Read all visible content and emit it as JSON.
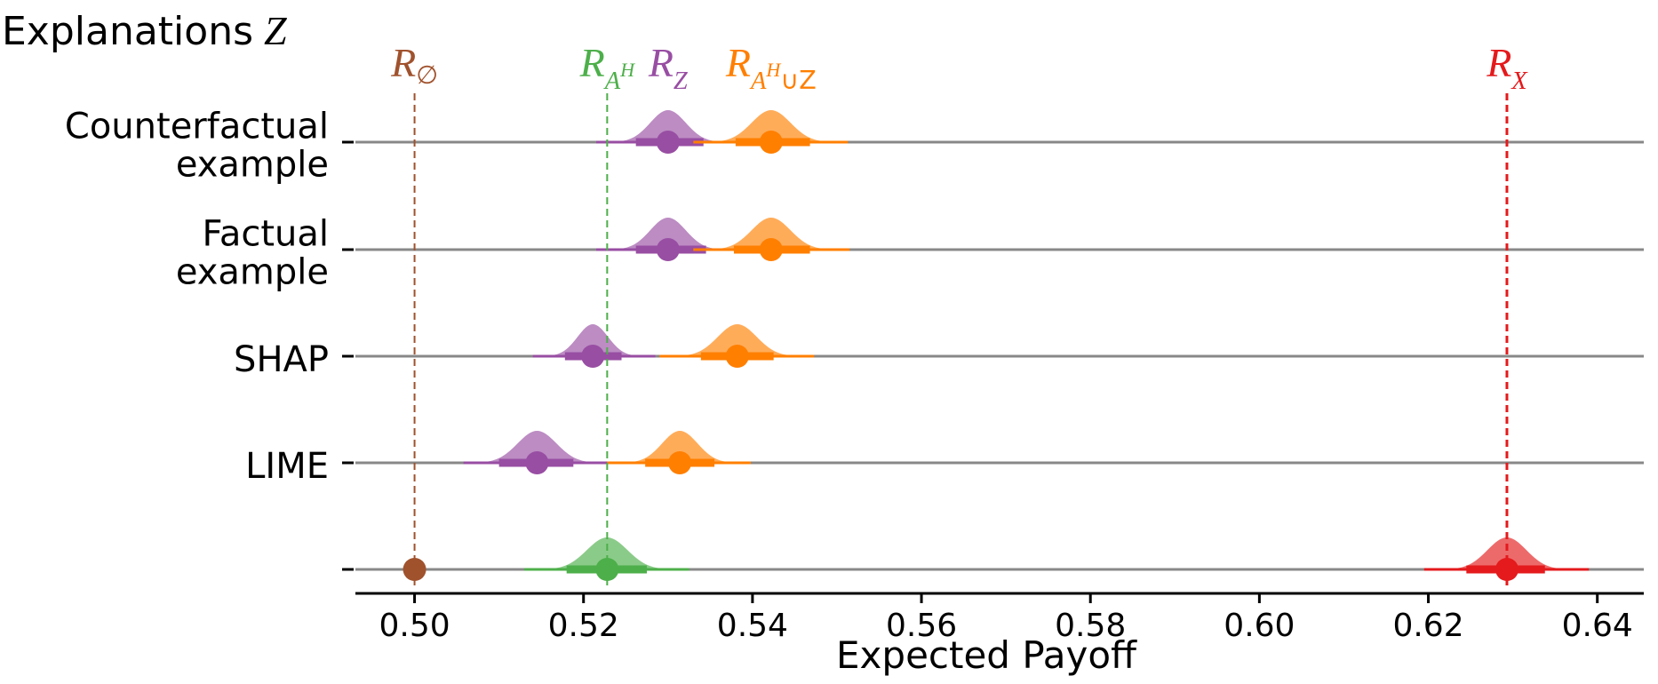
{
  "chart_data": {
    "type": "interval-density",
    "title_prefix": "Explanations",
    "title_var": "Z",
    "xlabel": "Expected Payoff",
    "xlim": [
      0.493,
      0.6455
    ],
    "xticks": [
      0.5,
      0.52,
      0.54,
      0.56,
      0.58,
      0.6,
      0.62,
      0.64
    ],
    "tick_labels": [
      "0.50",
      "0.52",
      "0.54",
      "0.56",
      "0.58",
      "0.60",
      "0.62",
      "0.64"
    ],
    "colors": {
      "none": "#A0522D",
      "AH": "#4DAF4A",
      "Z": "#984EA3",
      "AHZ": "#FF7F00",
      "X": "#E41A1C",
      "line": "#888888"
    },
    "reference_lines": [
      {
        "key": "none",
        "base": "R",
        "sub": "∅",
        "x": 0.5,
        "color": "#A0522D"
      },
      {
        "key": "AH",
        "base": "R",
        "sub": "A",
        "supsub": "H",
        "x": 0.5228,
        "color": "#4DAF4A"
      },
      {
        "key": "X",
        "base": "R",
        "sub": "X",
        "x": 0.6293,
        "color": "#E41A1C"
      }
    ],
    "header_labels": [
      {
        "key": "Z",
        "base": "R",
        "sub": "Z",
        "x": 0.53,
        "color": "#984EA3"
      },
      {
        "key": "AHZ",
        "base": "R",
        "sub": "A",
        "supsub": "H",
        "subtail": "∪Z",
        "x": 0.5422,
        "color": "#FF7F00"
      }
    ],
    "rows": [
      {
        "label": [
          "Counterfactual",
          "example"
        ],
        "series": [
          {
            "key": "Z",
            "mean": 0.53,
            "sd": 0.0021,
            "ci66": [
              0.5262,
              0.5342
            ],
            "ci95": [
              0.5215,
              0.5387
            ]
          },
          {
            "key": "AHZ",
            "mean": 0.5422,
            "sd": 0.0023,
            "ci66": [
              0.538,
              0.5468
            ],
            "ci95": [
              0.533,
              0.5513
            ]
          }
        ]
      },
      {
        "label": [
          "Factual",
          "example"
        ],
        "series": [
          {
            "key": "Z",
            "mean": 0.53,
            "sd": 0.0021,
            "ci66": [
              0.5262,
              0.5345
            ],
            "ci95": [
              0.5215,
              0.5387
            ]
          },
          {
            "key": "AHZ",
            "mean": 0.5422,
            "sd": 0.0023,
            "ci66": [
              0.5378,
              0.5468
            ],
            "ci95": [
              0.533,
              0.5515
            ]
          }
        ]
      },
      {
        "label": [
          "SHAP"
        ],
        "series": [
          {
            "key": "Z",
            "mean": 0.5211,
            "sd": 0.0018,
            "ci66": [
              0.5178,
              0.5245
            ],
            "ci95": [
              0.514,
              0.5285
            ]
          },
          {
            "key": "AHZ",
            "mean": 0.5382,
            "sd": 0.0023,
            "ci66": [
              0.5339,
              0.5425
            ],
            "ci95": [
              0.529,
              0.5473
            ]
          }
        ]
      },
      {
        "label": [
          "LIME"
        ],
        "series": [
          {
            "key": "Z",
            "mean": 0.5145,
            "sd": 0.0023,
            "ci66": [
              0.51,
              0.5188
            ],
            "ci95": [
              0.5058,
              0.524
            ]
          },
          {
            "key": "AHZ",
            "mean": 0.5314,
            "sd": 0.0021,
            "ci66": [
              0.5273,
              0.5355
            ],
            "ci95": [
              0.5228,
              0.5398
            ]
          }
        ]
      },
      {
        "label": [
          ""
        ],
        "series": [
          {
            "key": "none",
            "mean": 0.5,
            "point_only": true
          },
          {
            "key": "AH",
            "mean": 0.5228,
            "sd": 0.0024,
            "ci66": [
              0.518,
              0.5275
            ],
            "ci95": [
              0.513,
              0.5325
            ]
          },
          {
            "key": "X",
            "mean": 0.6293,
            "sd": 0.0023,
            "ci66": [
              0.6245,
              0.6338
            ],
            "ci95": [
              0.6195,
              0.639
            ]
          }
        ]
      }
    ]
  }
}
